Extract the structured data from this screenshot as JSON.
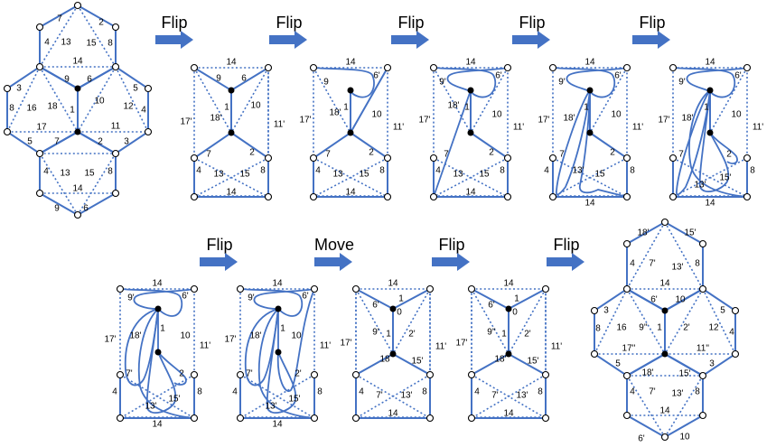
{
  "operations": [
    "Flip",
    "Flip",
    "Flip",
    "Flip",
    "Flip",
    "Flip",
    "Flip",
    "Move",
    "Flip",
    "Flip"
  ],
  "colors": {
    "edge": "#4472c4",
    "vertex_fill": "#ffffff",
    "puncture": "#000000"
  },
  "panels": [
    {
      "id": "initial-hexagons",
      "labels": [
        "7",
        "2",
        "4",
        "13",
        "15",
        "8",
        "14",
        "9",
        "6",
        "3",
        "5",
        "8",
        "16",
        "18",
        "1",
        "10",
        "12",
        "4",
        "17",
        "11",
        "5",
        "7",
        "2",
        "3",
        "4",
        "13",
        "15",
        "8",
        "14",
        "9",
        "6"
      ]
    },
    {
      "id": "step-1",
      "labels": [
        "14",
        "9",
        "6",
        "17'",
        "18'",
        "1",
        "10",
        "11'",
        "7",
        "2",
        "4",
        "13",
        "15",
        "8",
        "14"
      ]
    },
    {
      "id": "step-2",
      "labels": [
        "14",
        "9",
        "6'",
        "17'",
        "18'",
        "1",
        "10",
        "11'",
        "7",
        "2",
        "4",
        "13",
        "15",
        "8",
        "14"
      ]
    },
    {
      "id": "step-3",
      "labels": [
        "14",
        "9'",
        "6'",
        "17'",
        "18'",
        "1",
        "10",
        "11'",
        "7",
        "2",
        "4",
        "13",
        "15",
        "8",
        "14"
      ]
    },
    {
      "id": "step-4",
      "labels": [
        "14",
        "9'",
        "6'",
        "17'",
        "18'",
        "1",
        "10",
        "11'",
        "7",
        "2",
        "4",
        "13'",
        "15",
        "8",
        "14"
      ]
    },
    {
      "id": "step-5",
      "labels": [
        "14",
        "9'",
        "6'",
        "17'",
        "18'",
        "1",
        "10",
        "11'",
        "7",
        "2",
        "15'",
        "13'",
        "8",
        "14"
      ]
    },
    {
      "id": "step-6",
      "labels": [
        "14",
        "9'",
        "6'",
        "17'",
        "18'",
        "1",
        "10",
        "11'",
        "7'",
        "2",
        "4",
        "15'",
        "13'",
        "8",
        "14"
      ]
    },
    {
      "id": "step-7",
      "labels": [
        "14",
        "9'",
        "6'",
        "17'",
        "18'",
        "1",
        "10",
        "11'",
        "7'",
        "2'",
        "4",
        "15'",
        "13'",
        "8",
        "14"
      ]
    },
    {
      "id": "step-8",
      "labels": [
        "14",
        "6'",
        "1",
        "0",
        "17'",
        "9'",
        "1",
        "2'",
        "11'",
        "18",
        "15'",
        "4",
        "7'",
        "13'",
        "8",
        "14"
      ]
    },
    {
      "id": "step-9",
      "labels": [
        "14",
        "6'",
        "1",
        "0",
        "17'",
        "9''",
        "1",
        "2'",
        "11'",
        "18'",
        "15'",
        "4",
        "7'",
        "13'",
        "8",
        "14"
      ]
    },
    {
      "id": "final-hexagons",
      "labels": [
        "18'",
        "15'",
        "4",
        "7'",
        "13'",
        "8",
        "14",
        "6'",
        "10",
        "3",
        "16",
        "9''",
        "1",
        "2'",
        "12",
        "5",
        "8",
        "4",
        "17''",
        "11''",
        "5",
        "18'",
        "15'",
        "3",
        "4",
        "7'",
        "13'",
        "8",
        "14",
        "6'",
        "10"
      ]
    }
  ]
}
